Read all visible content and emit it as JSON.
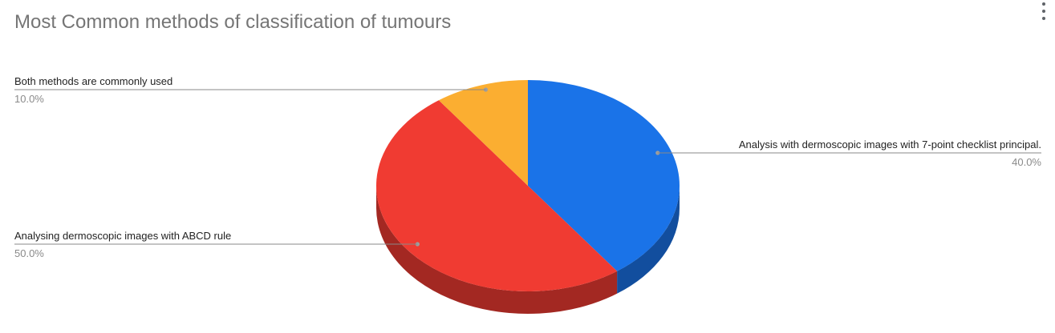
{
  "title": "Most Common methods of classification of tumours",
  "menu_icon": "more-vert-icon",
  "chart_data": {
    "type": "pie",
    "style": "3d",
    "title": "Most Common methods of classification of tumours",
    "legend": "labeled",
    "slices": [
      {
        "label": "Analysis with dermoscopic images with 7-point checklist principal.",
        "value": 40.0,
        "percent_label": "40.0%",
        "color": "#1a73e8"
      },
      {
        "label": "Analysing dermoscopic images with ABCD rule",
        "value": 50.0,
        "percent_label": "50.0%",
        "color": "#f03b32"
      },
      {
        "label": "Both methods are commonly used",
        "value": 10.0,
        "percent_label": "10.0%",
        "color": "#fbae31"
      }
    ]
  }
}
